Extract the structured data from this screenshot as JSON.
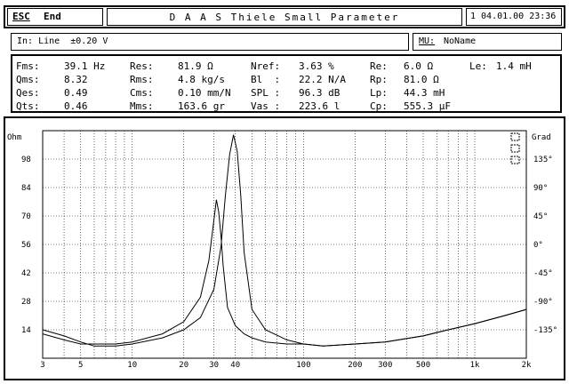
{
  "header": {
    "esc_label": "ESC",
    "end_label": "End",
    "title": "D A A S  Thiele Small Parameter",
    "datetime": "1 04.01.00 23:36"
  },
  "info": {
    "input": "In: Line  ±0.20 V",
    "mu_label": "MU:",
    "mu_value": "NoName"
  },
  "params": {
    "col1": [
      {
        "label": "Fms:",
        "value": "39.1 Hz"
      },
      {
        "label": "Qms:",
        "value": "8.32"
      },
      {
        "label": "Qes:",
        "value": "0.49"
      },
      {
        "label": "Qts:",
        "value": "0.46"
      }
    ],
    "col2": [
      {
        "label": "Res:",
        "value": "81.9 Ω"
      },
      {
        "label": "Rms:",
        "value": "4.8 kg/s"
      },
      {
        "label": "Cms:",
        "value": "0.10 mm/N"
      },
      {
        "label": "Mms:",
        "value": "163.6 gr"
      }
    ],
    "col3": [
      {
        "label": "Nref:",
        "value": "3.63 %"
      },
      {
        "label": "Bl  :",
        "value": "22.2 N/A"
      },
      {
        "label": "SPL :",
        "value": "96.3 dB"
      },
      {
        "label": "Vas :",
        "value": "223.6 l"
      }
    ],
    "col4": [
      {
        "label": "Re:",
        "value": "6.0 Ω"
      },
      {
        "label": "Rp:",
        "value": "81.0 Ω"
      },
      {
        "label": "Lp:",
        "value": "44.3 mH"
      },
      {
        "label": "Cp:",
        "value": "555.3 µF"
      }
    ],
    "col5": [
      {
        "label": "Le:",
        "value": "1.4 mH"
      }
    ]
  },
  "chart_data": {
    "type": "line",
    "left_axis_label": "Ohm",
    "right_axis_label": "Grad",
    "left_ticks": [
      "98",
      "84",
      "70",
      "56",
      "42",
      "28",
      "14"
    ],
    "right_ticks": [
      "135°",
      "90°",
      "45°",
      "0°",
      "-45°",
      "-90°",
      "-135°"
    ],
    "x_ticks": [
      "3",
      "5",
      "10",
      "20",
      "30",
      "40",
      "100",
      "200",
      "300",
      "500",
      "1k",
      "2k"
    ],
    "x_scale": "log",
    "xlim": [
      3,
      2000
    ],
    "ylim": [
      0,
      112
    ],
    "grid": true,
    "series": [
      {
        "x": [
          3,
          4,
          5,
          6,
          8,
          10,
          15,
          20,
          25,
          30,
          33,
          35,
          37,
          39,
          41,
          43,
          45,
          50,
          60,
          80,
          100,
          130,
          200,
          300,
          500,
          700,
          1000,
          1500,
          2000
        ],
        "y": [
          14,
          11,
          8,
          6,
          6,
          7,
          10,
          14,
          20,
          34,
          55,
          80,
          100,
          110,
          102,
          80,
          52,
          24,
          14,
          9,
          7,
          6,
          7,
          8,
          11,
          14,
          17,
          21,
          24
        ]
      },
      {
        "x": [
          3,
          4,
          5,
          6,
          8,
          10,
          15,
          20,
          25,
          28,
          30,
          31,
          32,
          33,
          34,
          36,
          40,
          45,
          50,
          60,
          80,
          100,
          130,
          200,
          300,
          500,
          700,
          1000,
          1500,
          2000
        ],
        "y": [
          12,
          9,
          7,
          7,
          7,
          8,
          12,
          18,
          30,
          48,
          68,
          78,
          72,
          60,
          45,
          25,
          16,
          12,
          10,
          8,
          7,
          7,
          6,
          7,
          8,
          11,
          14,
          17,
          21,
          24
        ]
      }
    ]
  }
}
